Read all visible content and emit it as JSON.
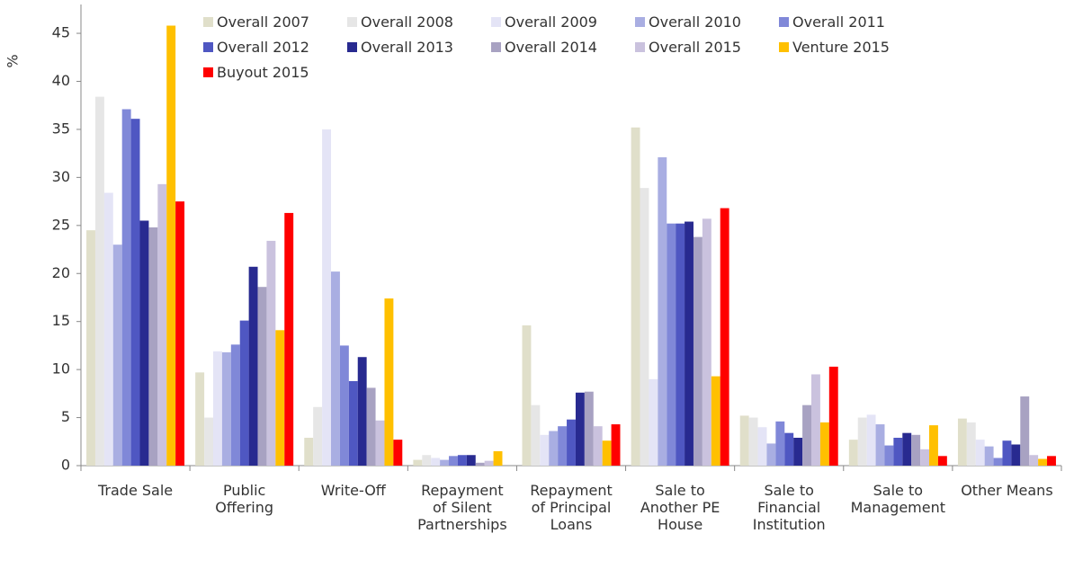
{
  "chart_data": {
    "type": "bar",
    "y_label": "%",
    "categories": [
      "Trade Sale",
      "Public Offering",
      "Write-Off",
      "Repayment of Silent Partnerships",
      "Repayment of Principal Loans",
      "Sale to Another PE House",
      "Sale to Financial Institution",
      "Sale to Management",
      "Other Means"
    ],
    "series": [
      {
        "name": "Overall 2007",
        "color": "#e0dfca",
        "values": [
          24.5,
          9.7,
          2.9,
          0.6,
          14.6,
          35.2,
          5.2,
          2.7,
          4.9
        ]
      },
      {
        "name": "Overall 2008",
        "color": "#e6e6e6",
        "values": [
          38.4,
          5.0,
          6.1,
          1.1,
          6.3,
          28.9,
          5.0,
          5.0,
          4.5
        ]
      },
      {
        "name": "Overall 2009",
        "color": "#e4e4f6",
        "values": [
          28.4,
          11.9,
          35.0,
          0.8,
          3.2,
          9.0,
          4.0,
          5.3,
          2.7
        ]
      },
      {
        "name": "Overall 2010",
        "color": "#a9aee2",
        "values": [
          23.0,
          11.8,
          20.2,
          0.6,
          3.6,
          32.1,
          2.3,
          4.3,
          2.0
        ]
      },
      {
        "name": "Overall 2011",
        "color": "#8088d8",
        "values": [
          37.1,
          12.6,
          12.5,
          1.0,
          4.1,
          25.2,
          4.6,
          2.1,
          0.8
        ]
      },
      {
        "name": "Overall 2012",
        "color": "#4f57c2",
        "values": [
          36.1,
          15.1,
          8.8,
          1.1,
          4.8,
          25.2,
          3.4,
          2.9,
          2.6
        ]
      },
      {
        "name": "Overall 2013",
        "color": "#282a90",
        "values": [
          25.5,
          20.7,
          11.3,
          1.1,
          7.6,
          25.4,
          2.9,
          3.4,
          2.2
        ]
      },
      {
        "name": "Overall 2014",
        "color": "#a8a2c2",
        "values": [
          24.8,
          18.6,
          8.1,
          0.3,
          7.7,
          23.8,
          6.3,
          3.2,
          7.2
        ]
      },
      {
        "name": "Overall 2015",
        "color": "#cac2de",
        "values": [
          29.3,
          23.4,
          4.7,
          0.5,
          4.1,
          25.7,
          9.5,
          1.7,
          1.1
        ]
      },
      {
        "name": "Venture 2015",
        "color": "#ffc000",
        "values": [
          45.8,
          14.1,
          17.4,
          1.5,
          2.6,
          9.3,
          4.5,
          4.2,
          0.7
        ]
      },
      {
        "name": "Buyout 2015",
        "color": "#ff0000",
        "values": [
          27.5,
          26.3,
          2.7,
          0,
          4.3,
          26.8,
          10.3,
          1.0,
          1.0
        ]
      }
    ],
    "ylim": [
      0,
      48
    ],
    "yticks": [
      0,
      5,
      10,
      15,
      20,
      25,
      30,
      35,
      40,
      45
    ]
  }
}
